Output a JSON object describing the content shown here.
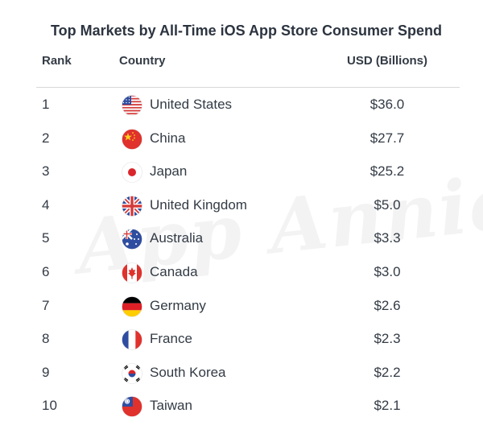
{
  "chart_data": {
    "type": "table",
    "title": "Top Markets by All-Time iOS App Store Consumer Spend",
    "columns": [
      "Rank",
      "Country",
      "USD (Billions)"
    ],
    "rows": [
      {
        "rank": "1",
        "country": "United States",
        "usd": "$36.0",
        "value": 36.0,
        "flag": "us-flag-icon"
      },
      {
        "rank": "2",
        "country": "China",
        "usd": "$27.7",
        "value": 27.7,
        "flag": "china-flag-icon"
      },
      {
        "rank": "3",
        "country": "Japan",
        "usd": "$25.2",
        "value": 25.2,
        "flag": "japan-flag-icon"
      },
      {
        "rank": "4",
        "country": "United Kingdom",
        "usd": "$5.0",
        "value": 5.0,
        "flag": "uk-flag-icon"
      },
      {
        "rank": "5",
        "country": "Australia",
        "usd": "$3.3",
        "value": 3.3,
        "flag": "australia-flag-icon"
      },
      {
        "rank": "6",
        "country": "Canada",
        "usd": "$3.0",
        "value": 3.0,
        "flag": "canada-flag-icon"
      },
      {
        "rank": "7",
        "country": "Germany",
        "usd": "$2.6",
        "value": 2.6,
        "flag": "germany-flag-icon"
      },
      {
        "rank": "8",
        "country": "France",
        "usd": "$2.3",
        "value": 2.3,
        "flag": "france-flag-icon"
      },
      {
        "rank": "9",
        "country": "South Korea",
        "usd": "$2.2",
        "value": 2.2,
        "flag": "south-korea-flag-icon"
      },
      {
        "rank": "10",
        "country": "Taiwan",
        "usd": "$2.1",
        "value": 2.1,
        "flag": "taiwan-flag-icon"
      }
    ]
  },
  "watermark": "App Annie",
  "colors": {
    "text": "#333b45",
    "title": "#2c3440",
    "divider": "#d8d8d8",
    "watermark": "#f3f3f4",
    "flag_red": "#e0312d",
    "flag_blue": "#2f4da0"
  }
}
